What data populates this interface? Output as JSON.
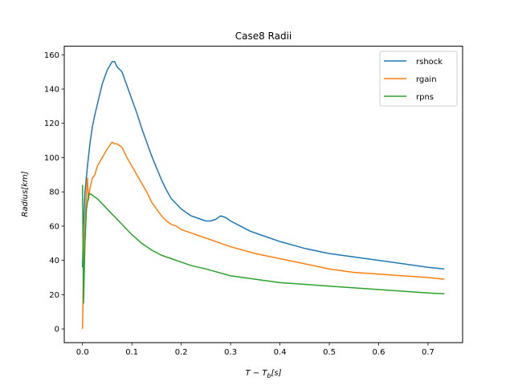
{
  "chart_data": {
    "type": "line",
    "title": "Case8 Radii",
    "xlabel": "T − T",
    "xlabel_sub": "b",
    "xlabel_suffix": "[s]",
    "ylabel": "Radius[km]",
    "xlim": [
      -0.037,
      0.77
    ],
    "ylim": [
      -8,
      165
    ],
    "x_ticks": [
      0.0,
      0.1,
      0.2,
      0.3,
      0.4,
      0.5,
      0.6,
      0.7
    ],
    "x_tick_labels": [
      "0.0",
      "0.1",
      "0.2",
      "0.3",
      "0.4",
      "0.5",
      "0.6",
      "0.7"
    ],
    "y_ticks": [
      0,
      20,
      40,
      60,
      80,
      100,
      120,
      140,
      160
    ],
    "y_tick_labels": [
      "0",
      "20",
      "40",
      "60",
      "80",
      "100",
      "120",
      "140",
      "160"
    ],
    "grid": false,
    "legend_position": "top-right",
    "series": [
      {
        "name": "rshock",
        "color": "#1f77b4",
        "x": [
          0.0,
          0.002,
          0.005,
          0.01,
          0.015,
          0.02,
          0.025,
          0.03,
          0.04,
          0.05,
          0.06,
          0.065,
          0.07,
          0.08,
          0.09,
          0.1,
          0.11,
          0.12,
          0.13,
          0.14,
          0.15,
          0.16,
          0.17,
          0.18,
          0.19,
          0.2,
          0.21,
          0.22,
          0.23,
          0.24,
          0.25,
          0.26,
          0.27,
          0.28,
          0.29,
          0.3,
          0.32,
          0.34,
          0.36,
          0.38,
          0.4,
          0.45,
          0.5,
          0.55,
          0.6,
          0.65,
          0.7,
          0.733
        ],
        "y": [
          36,
          60,
          80,
          95,
          108,
          118,
          125,
          131,
          143,
          151,
          156,
          156,
          153,
          150,
          142,
          134,
          126,
          117,
          109,
          101,
          94,
          87,
          81,
          76,
          73,
          70,
          68,
          66,
          65,
          64,
          63,
          63,
          64,
          66,
          65,
          63,
          60,
          57,
          55,
          53,
          51,
          47,
          44,
          42,
          40,
          38,
          36,
          35
        ]
      },
      {
        "name": "rgain",
        "color": "#ff7f0e",
        "x": [
          0.0,
          0.002,
          0.005,
          0.008,
          0.01,
          0.012,
          0.015,
          0.02,
          0.025,
          0.03,
          0.04,
          0.05,
          0.06,
          0.065,
          0.07,
          0.08,
          0.09,
          0.1,
          0.11,
          0.12,
          0.13,
          0.14,
          0.15,
          0.16,
          0.17,
          0.18,
          0.19,
          0.2,
          0.22,
          0.24,
          0.26,
          0.28,
          0.3,
          0.35,
          0.4,
          0.45,
          0.5,
          0.55,
          0.6,
          0.65,
          0.7,
          0.733
        ],
        "y": [
          0,
          36,
          60,
          80,
          88,
          75,
          82,
          88,
          90,
          95,
          100,
          105,
          109,
          108,
          108,
          106,
          100,
          95,
          90,
          85,
          80,
          74,
          70,
          66,
          63,
          61,
          60,
          58,
          56,
          54,
          52,
          50,
          48,
          44,
          41,
          38,
          35,
          33,
          32,
          31,
          30,
          29
        ]
      },
      {
        "name": "rpns",
        "color": "#2ca02c",
        "x": [
          0.0,
          0.002,
          0.005,
          0.008,
          0.012,
          0.015,
          0.02,
          0.03,
          0.04,
          0.05,
          0.06,
          0.07,
          0.08,
          0.1,
          0.12,
          0.14,
          0.16,
          0.18,
          0.2,
          0.22,
          0.25,
          0.3,
          0.35,
          0.4,
          0.45,
          0.5,
          0.55,
          0.6,
          0.65,
          0.7,
          0.733
        ],
        "y": [
          84,
          15,
          50,
          70,
          78,
          79,
          78,
          76,
          73,
          70,
          67,
          64,
          61,
          55,
          50,
          46,
          43,
          41,
          39,
          37,
          35,
          31,
          29,
          27,
          26,
          25,
          24,
          23,
          22,
          21,
          20.5
        ]
      }
    ]
  }
}
